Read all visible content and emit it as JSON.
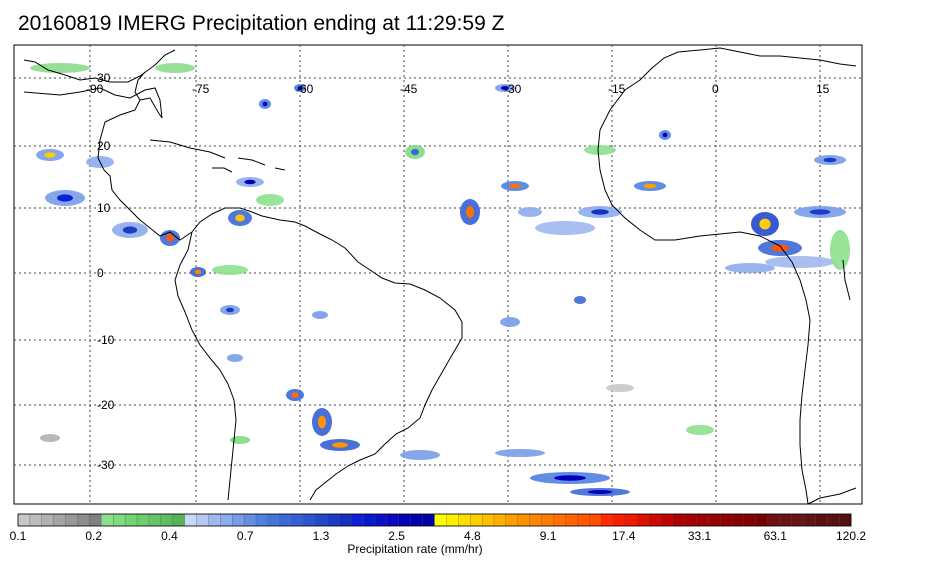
{
  "title": "20160819 IMERG Precipitation ending at 11:29:59 Z",
  "map": {
    "lon_labels": [
      "-90",
      "-75",
      "-60",
      "-45",
      "-30",
      "-15",
      "0",
      "15"
    ],
    "lat_labels": [
      "30",
      "20",
      "10",
      "0",
      "-10",
      "-20",
      "-30"
    ]
  },
  "colorbar": {
    "label": "Precipitation rate (mm/hr)",
    "tick_labels": [
      "0.1",
      "0.2",
      "0.4",
      "0.7",
      "1.3",
      "2.5",
      "4.8",
      "9.1",
      "17.4",
      "33.1",
      "63.1",
      "120.2"
    ],
    "colors": [
      "#c8c8c8",
      "#bcbcbc",
      "#b0b0b0",
      "#a4a4a4",
      "#989898",
      "#8c8c8c",
      "#808080",
      "#8ce08c",
      "#80dc80",
      "#74d474",
      "#70cc70",
      "#68c468",
      "#60bc60",
      "#58b458",
      "#c8d8f8",
      "#b4c8f4",
      "#a0b8f0",
      "#8cacec",
      "#789ce8",
      "#6490e4",
      "#5080e0",
      "#4474dc",
      "#3c68d8",
      "#3460d4",
      "#2c54d0",
      "#2448cc",
      "#1c3cc8",
      "#1430c4",
      "#0c20d8",
      "#0818d0",
      "#0810c8",
      "#0808c0",
      "#0000b8",
      "#0000b0",
      "#0000a8",
      "#ffff00",
      "#fff000",
      "#ffe000",
      "#ffd000",
      "#ffc000",
      "#ffb000",
      "#ffa000",
      "#ff9400",
      "#ff8800",
      "#ff7c00",
      "#ff7000",
      "#ff6400",
      "#ff5800",
      "#ff4c00",
      "#ff2c00",
      "#f82000",
      "#f01800",
      "#e01000",
      "#d00800",
      "#c00400",
      "#b00000",
      "#a80000",
      "#a00000",
      "#980000",
      "#900000",
      "#880000",
      "#800000",
      "#780000",
      "#701010",
      "#6c1414",
      "#681414",
      "#601414",
      "#5c1010",
      "#581010",
      "#541010"
    ]
  }
}
